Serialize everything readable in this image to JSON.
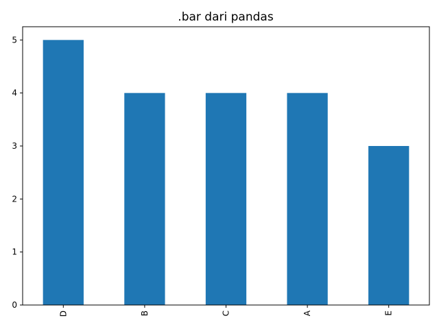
{
  "chart_data": {
    "type": "bar",
    "title": ".bar dari pandas",
    "categories": [
      "D",
      "B",
      "C",
      "A",
      "E"
    ],
    "values": [
      5,
      4,
      4,
      4,
      3
    ],
    "xlabel": "",
    "ylabel": "",
    "ylim": [
      0,
      5.25
    ],
    "yticks": [
      0,
      1,
      2,
      3,
      4,
      5
    ],
    "grid": false,
    "bar_color": "#1f77b4"
  }
}
